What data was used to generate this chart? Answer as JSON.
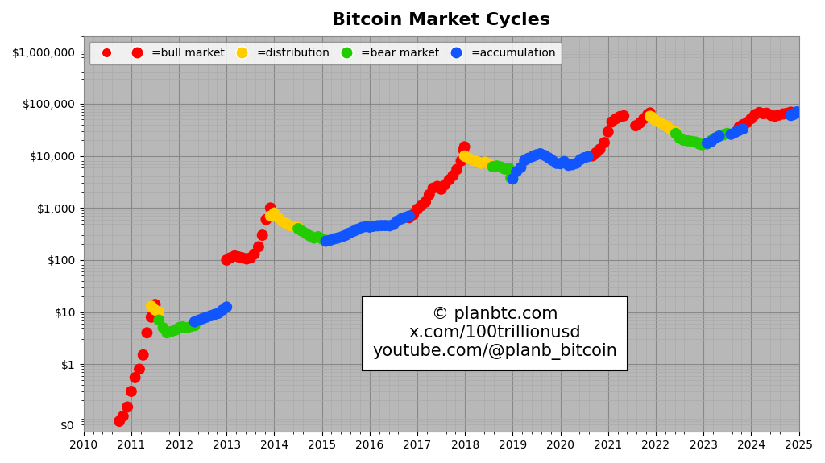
{
  "title": "Bitcoin Market Cycles",
  "background_color": "#ffffff",
  "plot_bg_color": "#b8b8b8",
  "grid_color": "#d8d8d8",
  "grid_major_color": "#888888",
  "watermark_lines": [
    "© planbtc.com",
    "x.com/100trillionusd",
    "youtube.com/@planb_bitcoin"
  ],
  "legend_labels": [
    "=bull market",
    "=distribution",
    "=bear market",
    "=accumulation"
  ],
  "legend_colors": [
    "#ff0000",
    "#ffcc00",
    "#22cc00",
    "#1155ff"
  ],
  "phases": [
    {
      "label": "bull",
      "color": "#ff0000",
      "points": [
        [
          2010.75,
          0.08
        ],
        [
          2010.83,
          0.1
        ],
        [
          2010.92,
          0.15
        ],
        [
          2011.0,
          0.3
        ],
        [
          2011.08,
          0.55
        ],
        [
          2011.17,
          0.8
        ],
        [
          2011.25,
          1.5
        ],
        [
          2011.33,
          4.0
        ],
        [
          2011.42,
          8.0
        ],
        [
          2011.5,
          14.0
        ],
        [
          2013.0,
          100.0
        ],
        [
          2013.08,
          110.0
        ],
        [
          2013.17,
          120.0
        ],
        [
          2013.25,
          115.0
        ],
        [
          2013.33,
          110.0
        ],
        [
          2013.42,
          105.0
        ],
        [
          2013.5,
          110.0
        ],
        [
          2013.58,
          130.0
        ],
        [
          2013.67,
          180.0
        ],
        [
          2013.75,
          300.0
        ],
        [
          2013.83,
          600.0
        ],
        [
          2013.92,
          1000.0
        ],
        [
          2016.83,
          650.0
        ],
        [
          2016.92,
          750.0
        ],
        [
          2017.0,
          950.0
        ],
        [
          2017.08,
          1100.0
        ],
        [
          2017.17,
          1300.0
        ],
        [
          2017.25,
          1800.0
        ],
        [
          2017.33,
          2400.0
        ],
        [
          2017.42,
          2600.0
        ],
        [
          2017.5,
          2300.0
        ],
        [
          2017.58,
          2800.0
        ],
        [
          2017.67,
          3500.0
        ],
        [
          2017.75,
          4200.0
        ],
        [
          2017.83,
          5500.0
        ],
        [
          2017.92,
          8000.0
        ],
        [
          2017.97,
          13000.0
        ],
        [
          2017.99,
          15000.0
        ],
        [
          2020.67,
          10000.0
        ],
        [
          2020.75,
          11500.0
        ],
        [
          2020.83,
          13500.0
        ],
        [
          2020.92,
          18000.0
        ],
        [
          2021.0,
          29000.0
        ],
        [
          2021.08,
          45000.0
        ],
        [
          2021.17,
          52000.0
        ],
        [
          2021.25,
          57000.0
        ],
        [
          2021.33,
          59000.0
        ],
        [
          2021.58,
          38000.0
        ],
        [
          2021.67,
          43000.0
        ],
        [
          2021.75,
          52000.0
        ],
        [
          2021.83,
          62000.0
        ],
        [
          2021.88,
          67000.0
        ],
        [
          2023.75,
          36000.0
        ],
        [
          2023.83,
          40000.0
        ],
        [
          2023.92,
          44000.0
        ],
        [
          2024.0,
          52000.0
        ],
        [
          2024.08,
          62000.0
        ],
        [
          2024.17,
          68000.0
        ],
        [
          2024.25,
          65000.0
        ],
        [
          2024.33,
          66000.0
        ],
        [
          2024.42,
          60000.0
        ],
        [
          2024.5,
          58000.0
        ],
        [
          2024.58,
          61000.0
        ],
        [
          2024.67,
          64000.0
        ],
        [
          2024.75,
          66000.0
        ],
        [
          2024.83,
          69000.0
        ],
        [
          2024.92,
          67000.0
        ]
      ]
    },
    {
      "label": "distribution",
      "color": "#ffcc00",
      "points": [
        [
          2011.42,
          13.0
        ],
        [
          2011.5,
          11.0
        ],
        [
          2011.58,
          10.0
        ],
        [
          2013.92,
          700.0
        ],
        [
          2014.0,
          800.0
        ],
        [
          2014.08,
          650.0
        ],
        [
          2014.17,
          550.0
        ],
        [
          2014.25,
          500.0
        ],
        [
          2014.33,
          460.0
        ],
        [
          2014.42,
          440.0
        ],
        [
          2014.5,
          420.0
        ],
        [
          2017.99,
          10000.0
        ],
        [
          2018.0,
          9800.0
        ],
        [
          2018.08,
          9000.0
        ],
        [
          2018.17,
          8200.0
        ],
        [
          2018.25,
          7800.0
        ],
        [
          2018.33,
          7200.0
        ],
        [
          2018.42,
          7600.0
        ],
        [
          2018.5,
          7000.0
        ],
        [
          2021.88,
          58000.0
        ],
        [
          2021.92,
          56000.0
        ],
        [
          2021.96,
          52000.0
        ],
        [
          2022.0,
          47000.0
        ],
        [
          2022.08,
          44000.0
        ],
        [
          2022.17,
          40000.0
        ],
        [
          2022.25,
          36000.0
        ],
        [
          2022.33,
          31000.0
        ],
        [
          2022.42,
          29000.0
        ]
      ]
    },
    {
      "label": "bear",
      "color": "#22cc00",
      "points": [
        [
          2011.58,
          7.0
        ],
        [
          2011.67,
          5.0
        ],
        [
          2011.75,
          4.0
        ],
        [
          2011.83,
          4.2
        ],
        [
          2011.92,
          4.5
        ],
        [
          2012.0,
          5.0
        ],
        [
          2012.08,
          5.2
        ],
        [
          2012.17,
          5.0
        ],
        [
          2012.25,
          5.3
        ],
        [
          2012.33,
          5.5
        ],
        [
          2014.5,
          400.0
        ],
        [
          2014.58,
          360.0
        ],
        [
          2014.67,
          320.0
        ],
        [
          2014.75,
          290.0
        ],
        [
          2014.83,
          265.0
        ],
        [
          2014.92,
          280.0
        ],
        [
          2015.0,
          255.0
        ],
        [
          2015.08,
          240.0
        ],
        [
          2018.58,
          6200.0
        ],
        [
          2018.67,
          6400.0
        ],
        [
          2018.75,
          6100.0
        ],
        [
          2018.83,
          5600.0
        ],
        [
          2018.92,
          5800.0
        ],
        [
          2018.96,
          3800.0
        ],
        [
          2019.0,
          3600.0
        ],
        [
          2022.42,
          27000.0
        ],
        [
          2022.5,
          22000.0
        ],
        [
          2022.58,
          20000.0
        ],
        [
          2022.67,
          19500.0
        ],
        [
          2022.75,
          19000.0
        ],
        [
          2022.83,
          18500.0
        ],
        [
          2022.92,
          16800.0
        ],
        [
          2022.96,
          16500.0
        ],
        [
          2023.0,
          16700.0
        ],
        [
          2023.08,
          17000.0
        ],
        [
          2023.17,
          20000.0
        ],
        [
          2023.25,
          22000.0
        ],
        [
          2023.33,
          24000.0
        ],
        [
          2023.42,
          25500.0
        ],
        [
          2023.5,
          27000.0
        ]
      ]
    },
    {
      "label": "accumulation",
      "color": "#1155ff",
      "points": [
        [
          2012.33,
          6.5
        ],
        [
          2012.42,
          7.0
        ],
        [
          2012.5,
          7.5
        ],
        [
          2012.58,
          8.0
        ],
        [
          2012.67,
          8.5
        ],
        [
          2012.75,
          9.0
        ],
        [
          2012.83,
          9.5
        ],
        [
          2012.92,
          11.0
        ],
        [
          2013.0,
          12.5
        ],
        [
          2015.08,
          230.0
        ],
        [
          2015.17,
          240.0
        ],
        [
          2015.25,
          255.0
        ],
        [
          2015.33,
          265.0
        ],
        [
          2015.42,
          280.0
        ],
        [
          2015.5,
          300.0
        ],
        [
          2015.58,
          330.0
        ],
        [
          2015.67,
          360.0
        ],
        [
          2015.75,
          390.0
        ],
        [
          2015.83,
          420.0
        ],
        [
          2015.92,
          440.0
        ],
        [
          2016.0,
          430.0
        ],
        [
          2016.08,
          445.0
        ],
        [
          2016.17,
          455.0
        ],
        [
          2016.25,
          460.0
        ],
        [
          2016.33,
          460.0
        ],
        [
          2016.42,
          455.0
        ],
        [
          2016.5,
          480.0
        ],
        [
          2016.58,
          560.0
        ],
        [
          2016.67,
          620.0
        ],
        [
          2016.75,
          660.0
        ],
        [
          2016.83,
          700.0
        ],
        [
          2019.0,
          3600.0
        ],
        [
          2019.08,
          5000.0
        ],
        [
          2019.17,
          6000.0
        ],
        [
          2019.25,
          8200.0
        ],
        [
          2019.33,
          9000.0
        ],
        [
          2019.42,
          9800.0
        ],
        [
          2019.5,
          10500.0
        ],
        [
          2019.58,
          11000.0
        ],
        [
          2019.67,
          10200.0
        ],
        [
          2019.75,
          9200.0
        ],
        [
          2019.83,
          8200.0
        ],
        [
          2019.92,
          7200.0
        ],
        [
          2020.0,
          7100.0
        ],
        [
          2020.08,
          7800.0
        ],
        [
          2020.17,
          6600.0
        ],
        [
          2020.25,
          6800.0
        ],
        [
          2020.33,
          7200.0
        ],
        [
          2020.42,
          8500.0
        ],
        [
          2020.5,
          9200.0
        ],
        [
          2020.58,
          9700.0
        ],
        [
          2023.08,
          17500.0
        ],
        [
          2023.17,
          19000.0
        ],
        [
          2023.25,
          22000.0
        ],
        [
          2023.33,
          24000.0
        ],
        [
          2023.58,
          26000.0
        ],
        [
          2023.67,
          28500.0
        ],
        [
          2023.75,
          31000.0
        ],
        [
          2023.83,
          33000.0
        ],
        [
          2024.83,
          60000.0
        ],
        [
          2024.88,
          62000.0
        ],
        [
          2024.92,
          65000.0
        ],
        [
          2024.96,
          70000.0
        ]
      ]
    }
  ],
  "xlim": [
    2010,
    2025
  ],
  "ylim_log": [
    0.05,
    2000000
  ],
  "ytick_vals": [
    1,
    10,
    100,
    1000,
    10000,
    100000,
    1000000
  ],
  "ytick_labels": [
    "$1",
    "$10",
    "$100",
    "$1,000",
    "$10,000",
    "$100,000",
    "$1,000,000"
  ],
  "xticks": [
    2010,
    2011,
    2012,
    2013,
    2014,
    2015,
    2016,
    2017,
    2018,
    2019,
    2020,
    2021,
    2022,
    2023,
    2024,
    2025
  ],
  "marker_size": 100,
  "title_fontsize": 16,
  "tick_fontsize": 10,
  "watermark_fontsize": 15
}
